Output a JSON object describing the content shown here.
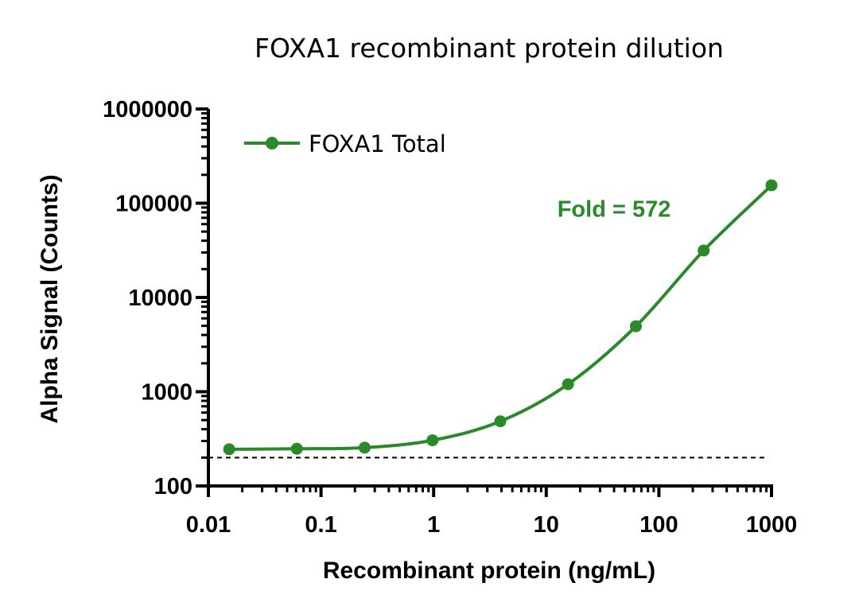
{
  "chart_data": {
    "type": "line",
    "title": "FOXA1 recombinant protein dilution",
    "xlabel": "Recombinant protein (ng/mL)",
    "ylabel": "Alpha Signal (Counts)",
    "x_scale": "log",
    "y_scale": "log",
    "xlim": [
      0.01,
      1000
    ],
    "ylim": [
      100,
      1000000
    ],
    "x_ticks": [
      "0.01",
      "0.1",
      "1",
      "10",
      "100",
      "1000"
    ],
    "y_ticks": [
      "100",
      "1000",
      "10000",
      "100000",
      "1000000"
    ],
    "grid": false,
    "legend": {
      "position": "top-left"
    },
    "series": [
      {
        "name": "FOXA1 Total",
        "color": "#2a8a2a",
        "x": [
          0.0153,
          0.061,
          0.244,
          0.977,
          3.91,
          15.6,
          62.5,
          250,
          1000
        ],
        "y": [
          245,
          248,
          255,
          305,
          485,
          1200,
          4950,
          31500,
          155000
        ],
        "fit": "sigmoidal"
      }
    ],
    "reference_line": {
      "y": 200,
      "style": "dashed",
      "color": "#000000"
    },
    "annotations": [
      {
        "text": "Fold = 572",
        "color": "#2a8a2a",
        "x": 40,
        "y": 72000
      }
    ]
  }
}
